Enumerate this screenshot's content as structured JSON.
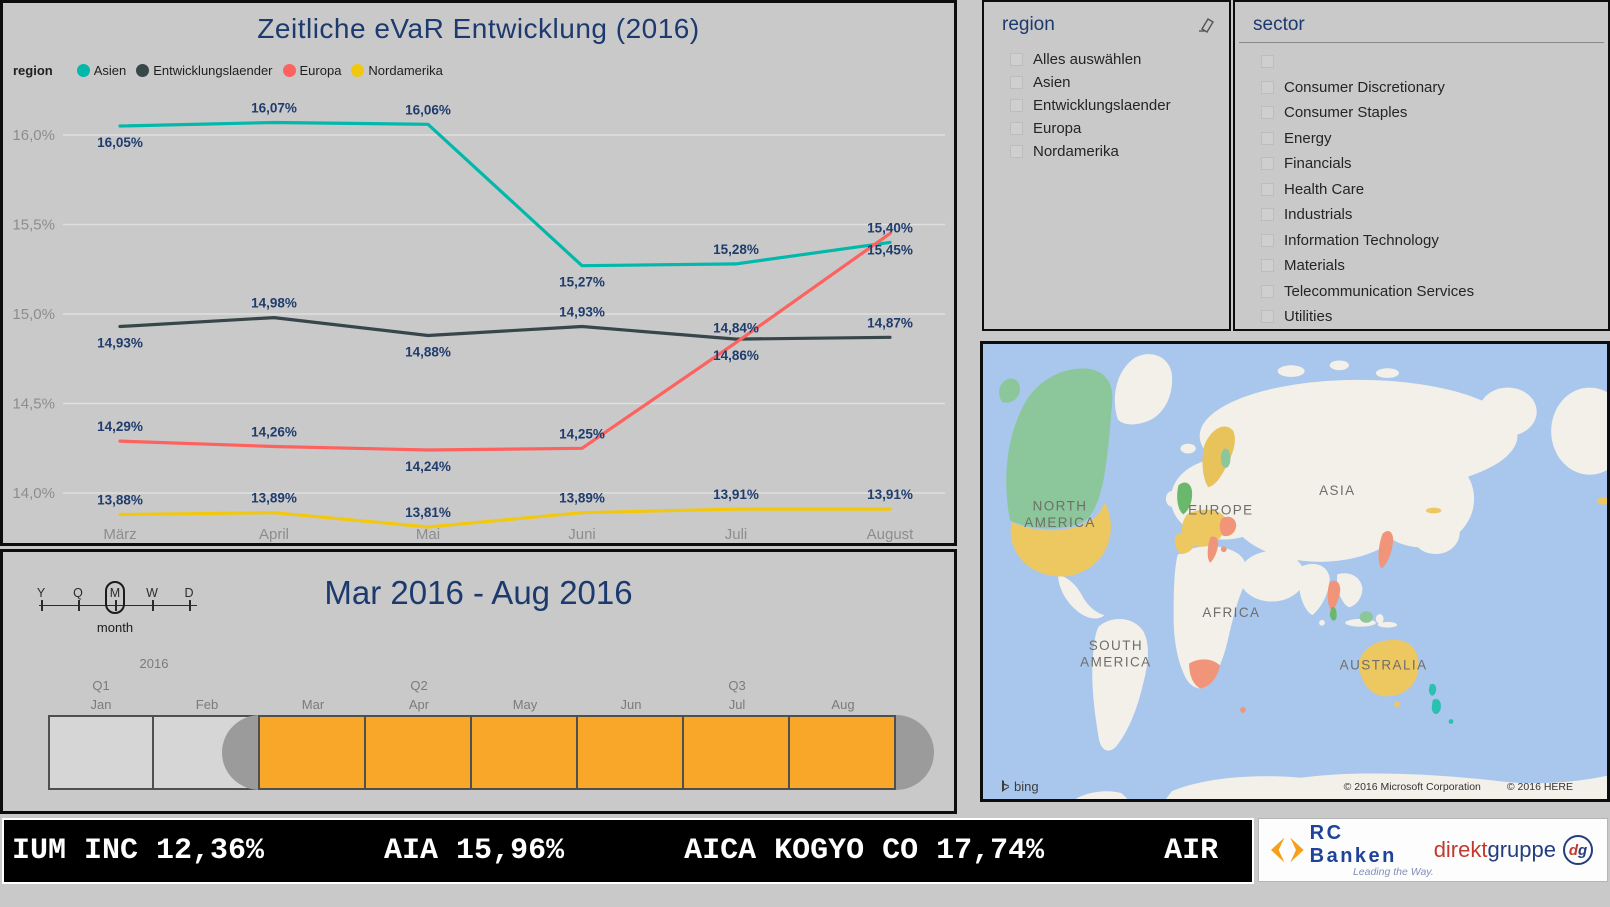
{
  "chart": {
    "title": "Zeitliche eVaR Entwicklung (2016)",
    "legend_label": "region",
    "chart_data": {
      "type": "line",
      "categories": [
        "März",
        "April",
        "Mai",
        "Juni",
        "Juli",
        "August"
      ],
      "series": [
        {
          "name": "Asien",
          "color": "#01B8AA",
          "values": [
            16.05,
            16.07,
            16.06,
            15.27,
            15.28,
            15.4
          ],
          "labels": [
            "16,05%",
            "16,07%",
            "16,06%",
            "15,27%",
            "15,28%",
            "15,40%"
          ],
          "label_positions": [
            "below",
            "above",
            "above",
            "below",
            "above",
            "above"
          ]
        },
        {
          "name": "Entwicklungslaender",
          "color": "#374649",
          "values": [
            14.93,
            14.98,
            14.88,
            14.93,
            14.86,
            14.87
          ],
          "labels": [
            "14,93%",
            "14,98%",
            "14,88%",
            "14,93%",
            "14,86%",
            "14,87%"
          ],
          "label_positions": [
            "below",
            "above",
            "below",
            "above",
            "below",
            "above"
          ]
        },
        {
          "name": "Europa",
          "color": "#FD625E",
          "values": [
            14.29,
            14.26,
            14.24,
            14.25,
            14.84,
            15.45
          ],
          "labels": [
            "14,29%",
            "14,26%",
            "14,24%",
            "14,25%",
            "14,84%",
            "15,45%"
          ],
          "label_positions": [
            "above",
            "above",
            "below",
            "above",
            "above",
            "below"
          ]
        },
        {
          "name": "Nordamerika",
          "color": "#F2C80F",
          "values": [
            13.88,
            13.89,
            13.81,
            13.89,
            13.91,
            13.91
          ],
          "labels": [
            "13,88%",
            "13,89%",
            "13,81%",
            "13,89%",
            "13,91%",
            "13,91%"
          ],
          "label_positions": [
            "above",
            "above",
            "above",
            "above",
            "above",
            "above"
          ]
        }
      ],
      "yticks": [
        {
          "v": 16.0,
          "label": "16,0%"
        },
        {
          "v": 15.5,
          "label": "15,5%"
        },
        {
          "v": 15.0,
          "label": "15,0%"
        },
        {
          "v": 14.5,
          "label": "14,5%"
        },
        {
          "v": 14.0,
          "label": "14,0%"
        }
      ],
      "ylim": [
        13.7,
        16.3
      ],
      "grid": true,
      "legend_position": "top-left"
    }
  },
  "region_slicer": {
    "title": "region",
    "items": [
      "Alles auswählen",
      "Asien",
      "Entwicklungslaender",
      "Europa",
      "Nordamerika"
    ]
  },
  "sector_slicer": {
    "title": "sector",
    "items": [
      "",
      "Consumer Discretionary",
      "Consumer Staples",
      "Energy",
      "Financials",
      "Health Care",
      "Industrials",
      "Information Technology",
      "Materials",
      "Telecommunication Services",
      "Utilities"
    ]
  },
  "timeline": {
    "title": "Mar 2016 - Aug 2016",
    "granularity": {
      "options": [
        "Y",
        "Q",
        "M",
        "W",
        "D"
      ],
      "selected": "M",
      "selected_label": "month"
    },
    "year_label": "2016",
    "quarters": [
      {
        "label": "Q1",
        "month_index": 0
      },
      {
        "label": "Q2",
        "month_index": 3
      },
      {
        "label": "Q3",
        "month_index": 6
      }
    ],
    "months": [
      "Jan",
      "Feb",
      "Mar",
      "Apr",
      "May",
      "Jun",
      "Jul",
      "Aug"
    ],
    "selected_start": "Mar",
    "selected_end": "Aug",
    "selected_color": "#F9A729"
  },
  "map": {
    "labels": [
      [
        "NORTH",
        "AMERICA"
      ],
      [
        "SOUTH",
        "AMERICA"
      ],
      [
        "EUROPE"
      ],
      [
        "ASIA"
      ],
      [
        "AFRICA"
      ],
      [
        "AUSTRALIA"
      ]
    ],
    "bing_label": "bing",
    "attribution_1": "© 2016 Microsoft Corporation",
    "attribution_2": "© 2016 HERE"
  },
  "ticker": {
    "items": [
      "IUM INC 12,36%",
      "AIA 15,96%",
      "AICA KOGYO CO 17,74%",
      "AIR"
    ]
  },
  "logos": {
    "rc_banken": {
      "name": "RC Banken",
      "tagline": "Leading the Way."
    },
    "direktgruppe": {
      "part1": "direkt",
      "part2": "gruppe",
      "badge_d": "d",
      "badge_g": "g"
    }
  },
  "colors": {
    "background": "#c9c9c9",
    "panel_border": "#0d0d0d",
    "title_navy": "#1c3a6e",
    "data_label": "#1f3c6d",
    "axis_text": "#8d8d8d",
    "gridline": "#e0e0e0",
    "timeline_orange": "#F9A729",
    "timeline_handle": "#9b9b9b",
    "ticker_bg": "#000000",
    "ticker_text": "#ffffff",
    "ocean": "#A9C7EC",
    "land": "#F3F0E9"
  }
}
